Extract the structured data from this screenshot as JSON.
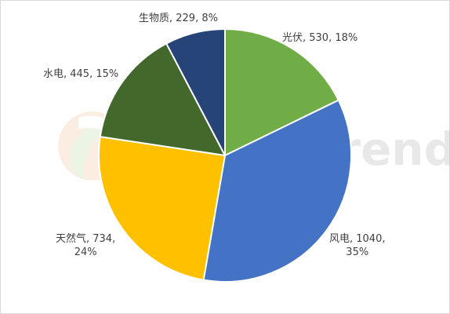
{
  "chart_data": {
    "type": "pie",
    "title": "",
    "slices": [
      {
        "label": "光伏",
        "value": 530,
        "percent": "18%",
        "color": "#70ad47",
        "label_lines": [
          "光伏, 530, 18%"
        ]
      },
      {
        "label": "风电",
        "value": 1040,
        "percent": "35%",
        "color": "#4472c4",
        "label_lines": [
          "风电, 1040,",
          "35%"
        ]
      },
      {
        "label": "天然气",
        "value": 734,
        "percent": "24%",
        "color": "#ffc000",
        "label_lines": [
          "天然气, 734,",
          "24%"
        ]
      },
      {
        "label": "水电",
        "value": 445,
        "percent": "15%",
        "color": "#43682b",
        "label_lines": [
          "水电, 445, 15%"
        ]
      },
      {
        "label": "生物质",
        "value": 229,
        "percent": "8%",
        "color": "#264478",
        "label_lines": [
          "生物质, 229, 8%"
        ]
      }
    ],
    "start_angle": "12 o'clock",
    "direction": "clockwise",
    "slice_border_color": "#ffffff",
    "legend": "none"
  },
  "watermark": {
    "text": "EnergyTrend",
    "logo_icon": "leaf-swirl-logo"
  }
}
